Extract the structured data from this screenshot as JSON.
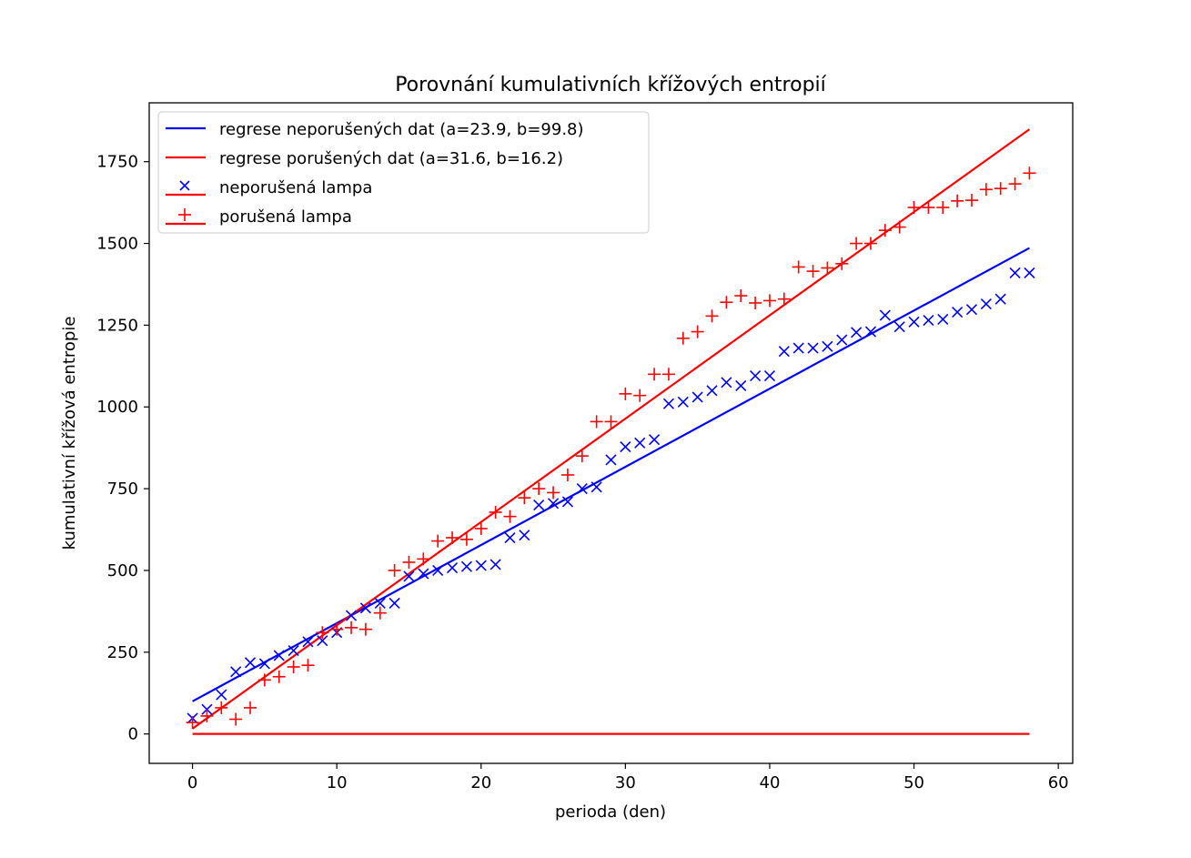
{
  "chart_data": {
    "type": "scatter",
    "title": "Porovnání kumulativních křížových entropií",
    "xlabel": "perioda (den)",
    "ylabel": "kumulativní křížová entropie",
    "xlim": [
      -3,
      61
    ],
    "ylim": [
      -90,
      1930
    ],
    "xticks": [
      0,
      10,
      20,
      30,
      40,
      50,
      60
    ],
    "yticks": [
      0,
      250,
      500,
      750,
      1000,
      1250,
      1500,
      1750
    ],
    "grid": false,
    "legend_position": "top-left",
    "colors": {
      "blue": "#0000ff",
      "red": "#ff0000"
    },
    "x": [
      0,
      1,
      2,
      3,
      4,
      5,
      6,
      7,
      8,
      9,
      10,
      11,
      12,
      13,
      14,
      15,
      16,
      17,
      18,
      19,
      20,
      21,
      22,
      23,
      24,
      25,
      26,
      27,
      28,
      29,
      30,
      31,
      32,
      33,
      34,
      35,
      36,
      37,
      38,
      39,
      40,
      41,
      42,
      43,
      44,
      45,
      46,
      47,
      48,
      49,
      50,
      51,
      52,
      53,
      54,
      55,
      56,
      57,
      58
    ],
    "series": [
      {
        "name": "regrese neporušených dat (a=23.9, b=99.8)",
        "kind": "line",
        "color": "#0000ff",
        "x": [
          0,
          58
        ],
        "values": [
          99.8,
          1486
        ]
      },
      {
        "name": "regrese porušených dat (a=31.6, b=16.2)",
        "kind": "line",
        "color": "#ff0000",
        "x": [
          0,
          58
        ],
        "values": [
          16.2,
          1849
        ]
      },
      {
        "name": "neporušená lampa",
        "kind": "scatter",
        "marker": "x",
        "color": "#0000ff",
        "values": [
          48,
          75,
          120,
          190,
          218,
          215,
          240,
          255,
          282,
          285,
          310,
          362,
          385,
          400,
          400,
          482,
          490,
          500,
          508,
          512,
          515,
          518,
          600,
          608,
          700,
          705,
          710,
          750,
          755,
          838,
          878,
          890,
          900,
          1010,
          1015,
          1030,
          1050,
          1075,
          1065,
          1095,
          1095,
          1170,
          1180,
          1180,
          1185,
          1205,
          1228,
          1230,
          1280,
          1245,
          1260,
          1265,
          1268,
          1290,
          1298,
          1315,
          1330,
          1410,
          1410
        ]
      },
      {
        "name": "porušená lampa",
        "kind": "scatter",
        "marker": "+",
        "color": "#ff0000",
        "values": [
          35,
          55,
          80,
          45,
          80,
          165,
          175,
          205,
          210,
          310,
          320,
          325,
          320,
          370,
          500,
          525,
          535,
          590,
          600,
          595,
          628,
          678,
          665,
          722,
          750,
          738,
          792,
          850,
          955,
          955,
          1040,
          1035,
          1100,
          1100,
          1210,
          1230,
          1278,
          1320,
          1340,
          1318,
          1325,
          1330,
          1428,
          1415,
          1425,
          1438,
          1500,
          1500,
          1540,
          1550,
          1610,
          1610,
          1610,
          1630,
          1632,
          1665,
          1668,
          1682,
          1715
        ]
      },
      {
        "name": "",
        "kind": "line",
        "color": "#ff0000",
        "x": [
          0,
          58
        ],
        "values": [
          0,
          0
        ]
      }
    ]
  }
}
